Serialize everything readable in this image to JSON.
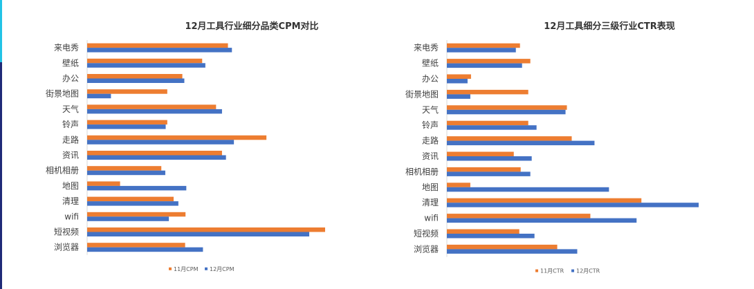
{
  "colors": {
    "nov": "#ED7D31",
    "dec": "#4472C4",
    "axis": "#D9D9D9"
  },
  "chart_data": [
    {
      "type": "bar",
      "orientation": "horizontal",
      "title": "12月工具行业细分品类CPM对比",
      "categories": [
        "来电秀",
        "壁纸",
        "办公",
        "街景地图",
        "天气",
        "铃声",
        "走路",
        "资讯",
        "相机相册",
        "地图",
        "清理",
        "wifi",
        "短视频",
        "浏览器"
      ],
      "series": [
        {
          "name": "11月CPM",
          "values": [
            35.5,
            29.0,
            24.0,
            20.2,
            32.5,
            20.2,
            45.2,
            34.0,
            18.7,
            8.3,
            21.8,
            24.8,
            60.0,
            24.7
          ]
        },
        {
          "name": "12月CPM",
          "values": [
            36.5,
            29.8,
            24.5,
            6.0,
            34.0,
            19.8,
            37.0,
            35.0,
            19.7,
            25.0,
            23.0,
            20.6,
            56.0,
            29.2
          ]
        }
      ],
      "legend": "bottom"
    },
    {
      "type": "bar",
      "orientation": "horizontal",
      "title": "12月工具细分三级行业CTR表现",
      "categories": [
        "来电秀",
        "壁纸",
        "办公",
        "街景地图",
        "天气",
        "铃声",
        "走路",
        "资讯",
        "相机相册",
        "地图",
        "清理",
        "wifi",
        "短视频",
        "浏览器"
      ],
      "series": [
        {
          "name": "11月CTR",
          "values": [
            1.06,
            1.21,
            0.35,
            1.18,
            1.74,
            1.18,
            1.81,
            0.97,
            1.07,
            0.34,
            2.82,
            2.08,
            1.05,
            1.6
          ]
        },
        {
          "name": "12月CTR",
          "values": [
            1.0,
            1.09,
            0.3,
            0.34,
            1.72,
            1.3,
            2.14,
            1.23,
            1.21,
            2.35,
            3.65,
            2.75,
            1.27,
            1.89
          ]
        }
      ],
      "legend": "bottom"
    }
  ]
}
